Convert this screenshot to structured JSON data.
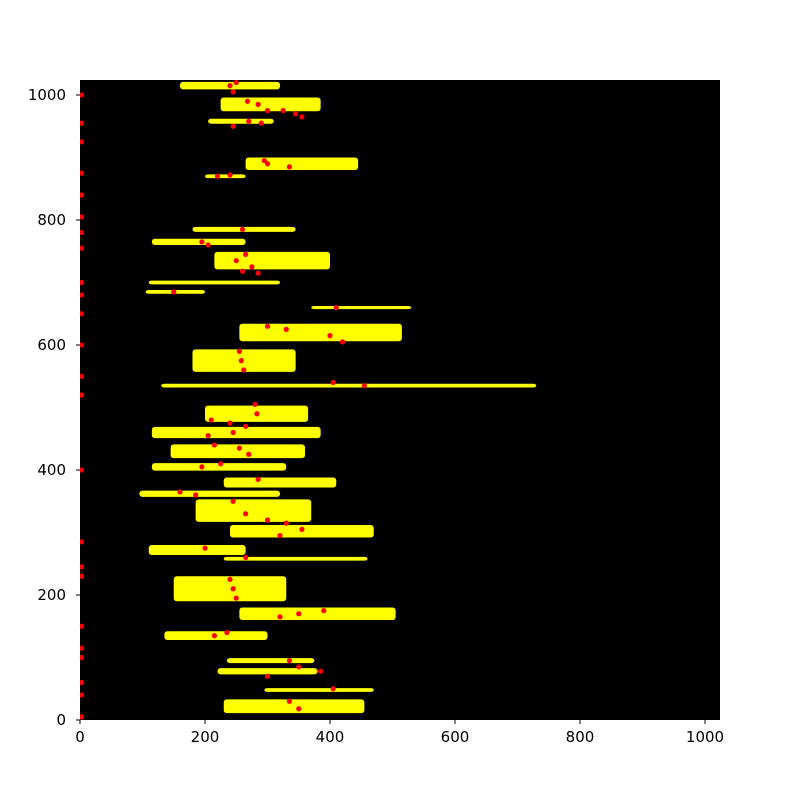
{
  "chart_data": {
    "type": "heatmap",
    "title": "",
    "xlabel": "",
    "ylabel": "",
    "xlim": [
      0,
      1024
    ],
    "ylim": [
      0,
      1024
    ],
    "grid": false,
    "background_color": "#000000",
    "band_color": "#ffff00",
    "point_color": "#ff0000",
    "x_ticks": [
      {
        "value": 0,
        "label": "0"
      },
      {
        "value": 200,
        "label": "200"
      },
      {
        "value": 400,
        "label": "400"
      },
      {
        "value": 600,
        "label": "600"
      },
      {
        "value": 800,
        "label": "800"
      },
      {
        "value": 1000,
        "label": "1000"
      }
    ],
    "y_ticks": [
      {
        "value": 0,
        "label": "0"
      },
      {
        "value": 200,
        "label": "200"
      },
      {
        "value": 400,
        "label": "400"
      },
      {
        "value": 600,
        "label": "600"
      },
      {
        "value": 800,
        "label": "800"
      },
      {
        "value": 1000,
        "label": "1000"
      }
    ],
    "bands": [
      {
        "y": 1015,
        "x_start": 160,
        "x_end": 320,
        "height": 12
      },
      {
        "y": 985,
        "x_start": 225,
        "x_end": 385,
        "height": 22
      },
      {
        "y": 958,
        "x_start": 205,
        "x_end": 310,
        "height": 8
      },
      {
        "y": 890,
        "x_start": 265,
        "x_end": 445,
        "height": 20
      },
      {
        "y": 870,
        "x_start": 200,
        "x_end": 265,
        "height": 6
      },
      {
        "y": 785,
        "x_start": 180,
        "x_end": 345,
        "height": 8
      },
      {
        "y": 765,
        "x_start": 115,
        "x_end": 265,
        "height": 10
      },
      {
        "y": 735,
        "x_start": 215,
        "x_end": 400,
        "height": 28
      },
      {
        "y": 700,
        "x_start": 110,
        "x_end": 320,
        "height": 6
      },
      {
        "y": 685,
        "x_start": 105,
        "x_end": 200,
        "height": 6
      },
      {
        "y": 660,
        "x_start": 370,
        "x_end": 530,
        "height": 5
      },
      {
        "y": 620,
        "x_start": 255,
        "x_end": 515,
        "height": 28
      },
      {
        "y": 575,
        "x_start": 180,
        "x_end": 345,
        "height": 36
      },
      {
        "y": 535,
        "x_start": 130,
        "x_end": 730,
        "height": 6
      },
      {
        "y": 490,
        "x_start": 200,
        "x_end": 365,
        "height": 26
      },
      {
        "y": 460,
        "x_start": 115,
        "x_end": 385,
        "height": 18
      },
      {
        "y": 430,
        "x_start": 145,
        "x_end": 360,
        "height": 22
      },
      {
        "y": 405,
        "x_start": 115,
        "x_end": 330,
        "height": 12
      },
      {
        "y": 380,
        "x_start": 230,
        "x_end": 410,
        "height": 16
      },
      {
        "y": 362,
        "x_start": 95,
        "x_end": 320,
        "height": 10
      },
      {
        "y": 335,
        "x_start": 185,
        "x_end": 370,
        "height": 36
      },
      {
        "y": 302,
        "x_start": 240,
        "x_end": 470,
        "height": 20
      },
      {
        "y": 272,
        "x_start": 110,
        "x_end": 265,
        "height": 16
      },
      {
        "y": 258,
        "x_start": 230,
        "x_end": 460,
        "height": 6
      },
      {
        "y": 210,
        "x_start": 150,
        "x_end": 330,
        "height": 40
      },
      {
        "y": 170,
        "x_start": 255,
        "x_end": 505,
        "height": 20
      },
      {
        "y": 135,
        "x_start": 135,
        "x_end": 300,
        "height": 14
      },
      {
        "y": 95,
        "x_start": 235,
        "x_end": 375,
        "height": 8
      },
      {
        "y": 78,
        "x_start": 220,
        "x_end": 380,
        "height": 10
      },
      {
        "y": 48,
        "x_start": 295,
        "x_end": 470,
        "height": 6
      },
      {
        "y": 22,
        "x_start": 230,
        "x_end": 455,
        "height": 22
      }
    ],
    "red_points": [
      {
        "x": 0,
        "y": 1000
      },
      {
        "x": 0,
        "y": 955
      },
      {
        "x": 0,
        "y": 925
      },
      {
        "x": 0,
        "y": 875
      },
      {
        "x": 0,
        "y": 840
      },
      {
        "x": 0,
        "y": 805
      },
      {
        "x": 0,
        "y": 780
      },
      {
        "x": 0,
        "y": 755
      },
      {
        "x": 0,
        "y": 700
      },
      {
        "x": 0,
        "y": 680
      },
      {
        "x": 0,
        "y": 650
      },
      {
        "x": 0,
        "y": 600
      },
      {
        "x": 0,
        "y": 550
      },
      {
        "x": 0,
        "y": 520
      },
      {
        "x": 0,
        "y": 400
      },
      {
        "x": 0,
        "y": 285
      },
      {
        "x": 0,
        "y": 245
      },
      {
        "x": 0,
        "y": 230
      },
      {
        "x": 0,
        "y": 150
      },
      {
        "x": 0,
        "y": 115
      },
      {
        "x": 0,
        "y": 100
      },
      {
        "x": 0,
        "y": 60
      },
      {
        "x": 0,
        "y": 40
      },
      {
        "x": 0,
        "y": 5
      },
      {
        "x": 240,
        "y": 1015
      },
      {
        "x": 245,
        "y": 1005
      },
      {
        "x": 250,
        "y": 1020
      },
      {
        "x": 268,
        "y": 990
      },
      {
        "x": 285,
        "y": 985
      },
      {
        "x": 300,
        "y": 975
      },
      {
        "x": 325,
        "y": 975
      },
      {
        "x": 345,
        "y": 970
      },
      {
        "x": 355,
        "y": 965
      },
      {
        "x": 245,
        "y": 950
      },
      {
        "x": 270,
        "y": 958
      },
      {
        "x": 290,
        "y": 955
      },
      {
        "x": 295,
        "y": 895
      },
      {
        "x": 300,
        "y": 890
      },
      {
        "x": 335,
        "y": 885
      },
      {
        "x": 220,
        "y": 870
      },
      {
        "x": 240,
        "y": 872
      },
      {
        "x": 260,
        "y": 785
      },
      {
        "x": 195,
        "y": 765
      },
      {
        "x": 205,
        "y": 760
      },
      {
        "x": 250,
        "y": 735
      },
      {
        "x": 265,
        "y": 745
      },
      {
        "x": 275,
        "y": 725
      },
      {
        "x": 285,
        "y": 715
      },
      {
        "x": 260,
        "y": 718
      },
      {
        "x": 150,
        "y": 685
      },
      {
        "x": 410,
        "y": 660
      },
      {
        "x": 300,
        "y": 630
      },
      {
        "x": 330,
        "y": 625
      },
      {
        "x": 400,
        "y": 615
      },
      {
        "x": 420,
        "y": 605
      },
      {
        "x": 255,
        "y": 590
      },
      {
        "x": 258,
        "y": 575
      },
      {
        "x": 262,
        "y": 560
      },
      {
        "x": 405,
        "y": 540
      },
      {
        "x": 455,
        "y": 535
      },
      {
        "x": 280,
        "y": 505
      },
      {
        "x": 283,
        "y": 490
      },
      {
        "x": 210,
        "y": 480
      },
      {
        "x": 240,
        "y": 475
      },
      {
        "x": 265,
        "y": 470
      },
      {
        "x": 205,
        "y": 455
      },
      {
        "x": 245,
        "y": 460
      },
      {
        "x": 215,
        "y": 440
      },
      {
        "x": 255,
        "y": 435
      },
      {
        "x": 270,
        "y": 425
      },
      {
        "x": 195,
        "y": 405
      },
      {
        "x": 225,
        "y": 410
      },
      {
        "x": 285,
        "y": 385
      },
      {
        "x": 160,
        "y": 365
      },
      {
        "x": 185,
        "y": 360
      },
      {
        "x": 245,
        "y": 350
      },
      {
        "x": 265,
        "y": 330
      },
      {
        "x": 300,
        "y": 320
      },
      {
        "x": 330,
        "y": 315
      },
      {
        "x": 355,
        "y": 305
      },
      {
        "x": 320,
        "y": 295
      },
      {
        "x": 200,
        "y": 275
      },
      {
        "x": 265,
        "y": 260
      },
      {
        "x": 240,
        "y": 225
      },
      {
        "x": 245,
        "y": 210
      },
      {
        "x": 250,
        "y": 195
      },
      {
        "x": 350,
        "y": 170
      },
      {
        "x": 390,
        "y": 175
      },
      {
        "x": 320,
        "y": 165
      },
      {
        "x": 215,
        "y": 135
      },
      {
        "x": 235,
        "y": 140
      },
      {
        "x": 335,
        "y": 95
      },
      {
        "x": 350,
        "y": 85
      },
      {
        "x": 300,
        "y": 70
      },
      {
        "x": 385,
        "y": 78
      },
      {
        "x": 405,
        "y": 50
      },
      {
        "x": 335,
        "y": 30
      },
      {
        "x": 350,
        "y": 18
      }
    ]
  }
}
